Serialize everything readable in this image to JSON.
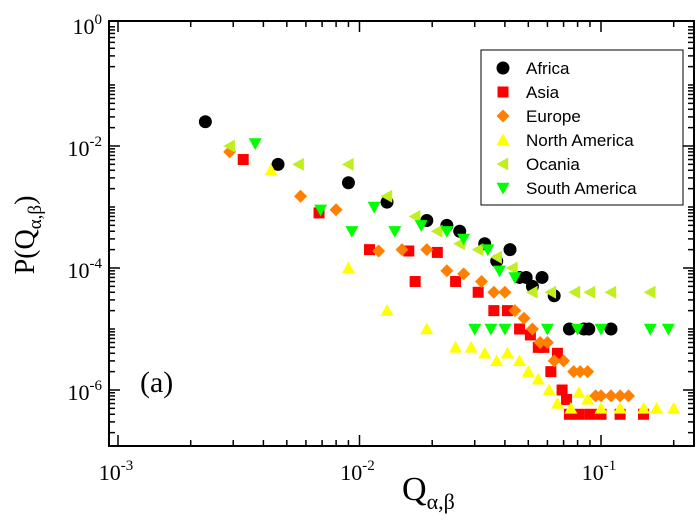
{
  "chart_data": {
    "type": "scatter",
    "xscale": "log",
    "yscale": "log",
    "xlim": [
      0.001,
      0.25
    ],
    "ylim": [
      1e-07,
      1
    ],
    "x_ticks": [
      {
        "value": 0.001,
        "base": "10",
        "exp": "-3"
      },
      {
        "value": 0.01,
        "base": "10",
        "exp": "-2"
      },
      {
        "value": 0.1,
        "base": "10",
        "exp": "-1"
      }
    ],
    "y_ticks": [
      {
        "value": 1e-06,
        "base": "10",
        "exp": "-6"
      },
      {
        "value": 0.0001,
        "base": "10",
        "exp": "-4"
      },
      {
        "value": 0.01,
        "base": "10",
        "exp": "-2"
      },
      {
        "value": 1,
        "base": "10",
        "exp": "0"
      }
    ],
    "xlabel": {
      "main": "Q",
      "sub": "α,β"
    },
    "ylabel": {
      "main": "P(Q",
      "sub": "α,β",
      "close": ")"
    },
    "annotation": "(a)",
    "grid": false,
    "legend_position": "top-right",
    "series": [
      {
        "name": "Africa",
        "marker": "circle",
        "color": "#000000",
        "points": [
          [
            0.0023,
            0.025
          ],
          [
            0.0046,
            0.005
          ],
          [
            0.009,
            0.0025
          ],
          [
            0.013,
            0.0012
          ],
          [
            0.019,
            0.0006
          ],
          [
            0.023,
            0.0005
          ],
          [
            0.026,
            0.0004
          ],
          [
            0.033,
            0.00025
          ],
          [
            0.037,
            0.00013
          ],
          [
            0.042,
            0.0002
          ],
          [
            0.046,
            7e-05
          ],
          [
            0.049,
            7e-05
          ],
          [
            0.052,
            5e-05
          ],
          [
            0.057,
            7e-05
          ],
          [
            0.064,
            3.5e-05
          ],
          [
            0.074,
            1e-05
          ],
          [
            0.085,
            1e-05
          ],
          [
            0.089,
            1e-05
          ],
          [
            0.11,
            1e-05
          ]
        ]
      },
      {
        "name": "Asia",
        "marker": "square",
        "color": "#ff0000",
        "points": [
          [
            0.0033,
            0.006
          ],
          [
            0.0068,
            0.0008
          ],
          [
            0.011,
            0.0002
          ],
          [
            0.016,
            0.00019
          ],
          [
            0.021,
            0.00018
          ],
          [
            0.017,
            6e-05
          ],
          [
            0.025,
            6e-05
          ],
          [
            0.031,
            4e-05
          ],
          [
            0.036,
            2e-05
          ],
          [
            0.041,
            2e-05
          ],
          [
            0.046,
            1e-05
          ],
          [
            0.051,
            8e-06
          ],
          [
            0.055,
            5e-06
          ],
          [
            0.058,
            5e-06
          ],
          [
            0.062,
            2e-06
          ],
          [
            0.066,
            4e-06
          ],
          [
            0.069,
            1e-06
          ],
          [
            0.072,
            7e-07
          ],
          [
            0.074,
            4e-07
          ],
          [
            0.081,
            4e-07
          ],
          [
            0.09,
            4e-07
          ],
          [
            0.1,
            4e-07
          ],
          [
            0.12,
            4e-07
          ],
          [
            0.15,
            4e-07
          ]
        ]
      },
      {
        "name": "Europe",
        "marker": "diamond",
        "color": "#ff7f00",
        "points": [
          [
            0.0029,
            0.008
          ],
          [
            0.0057,
            0.0015
          ],
          [
            0.008,
            0.0009
          ],
          [
            0.012,
            0.00019
          ],
          [
            0.015,
            0.0002
          ],
          [
            0.019,
            0.0002
          ],
          [
            0.023,
            9e-05
          ],
          [
            0.027,
            8e-05
          ],
          [
            0.032,
            6e-05
          ],
          [
            0.036,
            4e-05
          ],
          [
            0.04,
            4e-05
          ],
          [
            0.044,
            2e-05
          ],
          [
            0.048,
            1.5e-05
          ],
          [
            0.052,
            1e-05
          ],
          [
            0.056,
            6e-06
          ],
          [
            0.06,
            6e-06
          ],
          [
            0.064,
            3e-06
          ],
          [
            0.07,
            3e-06
          ],
          [
            0.077,
            2e-06
          ],
          [
            0.082,
            2e-06
          ],
          [
            0.088,
            2e-06
          ],
          [
            0.095,
            8e-07
          ],
          [
            0.1,
            8e-07
          ],
          [
            0.11,
            8e-07
          ],
          [
            0.12,
            8e-07
          ],
          [
            0.13,
            8e-07
          ]
        ]
      },
      {
        "name": "North America",
        "marker": "triangle-up",
        "color": "#ffff00",
        "points": [
          [
            0.0043,
            0.004
          ],
          [
            0.009,
            0.0001
          ],
          [
            0.013,
            2e-05
          ],
          [
            0.019,
            1e-05
          ],
          [
            0.025,
            5e-06
          ],
          [
            0.029,
            5e-06
          ],
          [
            0.033,
            4e-06
          ],
          [
            0.037,
            3e-06
          ],
          [
            0.041,
            4e-06
          ],
          [
            0.046,
            3e-06
          ],
          [
            0.05,
            2e-06
          ],
          [
            0.055,
            1.5e-06
          ],
          [
            0.061,
            1e-06
          ],
          [
            0.066,
            6e-07
          ],
          [
            0.075,
            5e-07
          ],
          [
            0.081,
            9e-07
          ],
          [
            0.088,
            7e-07
          ],
          [
            0.1,
            5e-07
          ],
          [
            0.12,
            5e-07
          ],
          [
            0.15,
            5e-07
          ],
          [
            0.17,
            5e-07
          ],
          [
            0.2,
            5e-07
          ]
        ]
      },
      {
        "name": "Ocania",
        "marker": "triangle-left",
        "color": "#bfef1f",
        "points": [
          [
            0.0029,
            0.01
          ],
          [
            0.0056,
            0.005
          ],
          [
            0.009,
            0.005
          ],
          [
            0.013,
            0.0015
          ],
          [
            0.017,
            0.0007
          ],
          [
            0.021,
            0.0004
          ],
          [
            0.026,
            0.00025
          ],
          [
            0.031,
            0.0002
          ],
          [
            0.037,
            0.00015
          ],
          [
            0.043,
            0.0001
          ],
          [
            0.052,
            4e-05
          ],
          [
            0.062,
            4e-05
          ],
          [
            0.078,
            4e-05
          ],
          [
            0.09,
            4e-05
          ],
          [
            0.11,
            4e-05
          ],
          [
            0.16,
            4e-05
          ]
        ]
      },
      {
        "name": "South America",
        "marker": "triangle-down",
        "color": "#00ff00",
        "points": [
          [
            0.0037,
            0.011
          ],
          [
            0.0069,
            0.0009
          ],
          [
            0.0093,
            0.0004
          ],
          [
            0.0115,
            0.001
          ],
          [
            0.014,
            0.0004
          ],
          [
            0.018,
            0.0005
          ],
          [
            0.023,
            0.0004
          ],
          [
            0.027,
            0.0003
          ],
          [
            0.034,
            0.0002
          ],
          [
            0.038,
            9e-05
          ],
          [
            0.044,
            7e-05
          ],
          [
            0.03,
            1e-05
          ],
          [
            0.035,
            1e-05
          ],
          [
            0.04,
            1e-05
          ],
          [
            0.06,
            1e-05
          ],
          [
            0.08,
            1e-05
          ],
          [
            0.1,
            1e-05
          ],
          [
            0.16,
            1e-05
          ],
          [
            0.19,
            1e-05
          ]
        ]
      }
    ]
  }
}
